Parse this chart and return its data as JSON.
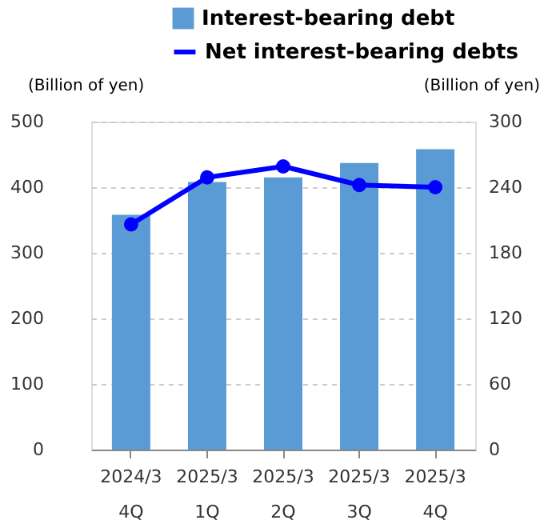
{
  "chart_data": {
    "type": "bar",
    "categories": [
      "2024/3\n4Q",
      "2025/3\n1Q",
      "2025/3\n2Q",
      "2025/3\n3Q",
      "2025/3\n4Q"
    ],
    "series": [
      {
        "name": "Interest-bearing debt",
        "color": "#5b9bd5",
        "values": [
          358,
          408,
          415,
          437,
          458
        ]
      },
      {
        "name": "Net interest-bearing debts",
        "type": "line",
        "axis": "y2",
        "color": "#0000ff",
        "values": [
          206,
          249,
          259,
          242,
          240
        ]
      }
    ],
    "ylabel": "(Billion of yen)",
    "y2label": "(Billion of yen)",
    "ylim": [
      0,
      500
    ],
    "yticks": [
      0,
      100,
      200,
      300,
      400,
      500
    ],
    "y2lim": [
      0,
      300
    ],
    "y2ticks": [
      0,
      60,
      120,
      180,
      240,
      300
    ],
    "grid": "y",
    "legend": "top",
    "marker": "circle",
    "line_style": "solid"
  }
}
